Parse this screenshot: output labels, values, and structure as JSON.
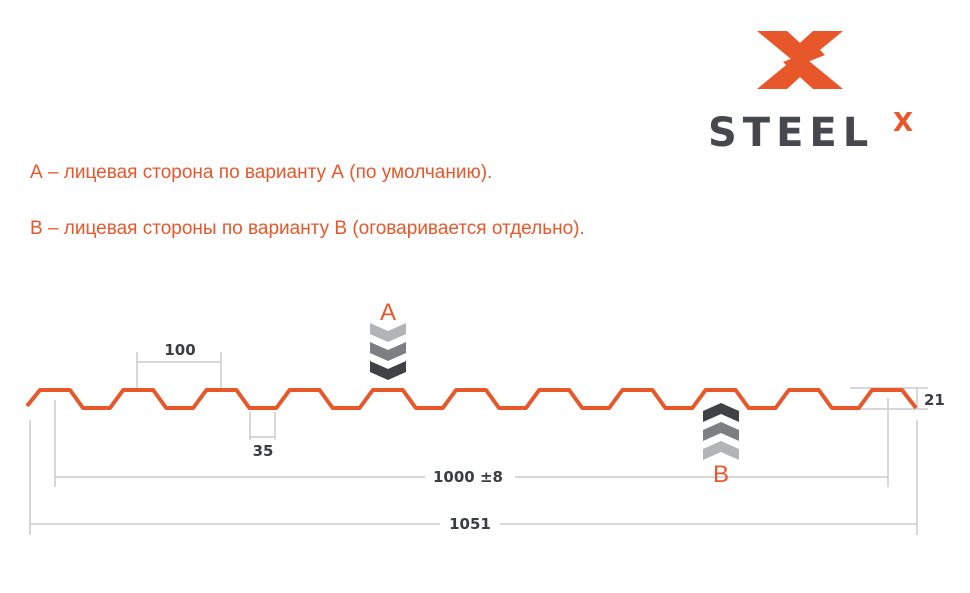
{
  "logo": {
    "text": "STEEL",
    "superscript": "X",
    "brand_color": "#e8572a",
    "text_color": "#45484d"
  },
  "notes": [
    "А – лицевая сторона по варианту А (по умолчанию).",
    "В – лицевая стороны по варианту В (оговаривается отдельно)."
  ],
  "profile": {
    "color": "#e8572a",
    "dimensions": {
      "pitch": "100",
      "valley": "35",
      "height": "21",
      "useful_width": "1000 ±8",
      "total_width": "1051"
    },
    "side_a_label": "A",
    "side_b_label": "B",
    "arrow_colors": [
      "#3f4145",
      "#7d7f82",
      "#b3b4b6"
    ]
  }
}
